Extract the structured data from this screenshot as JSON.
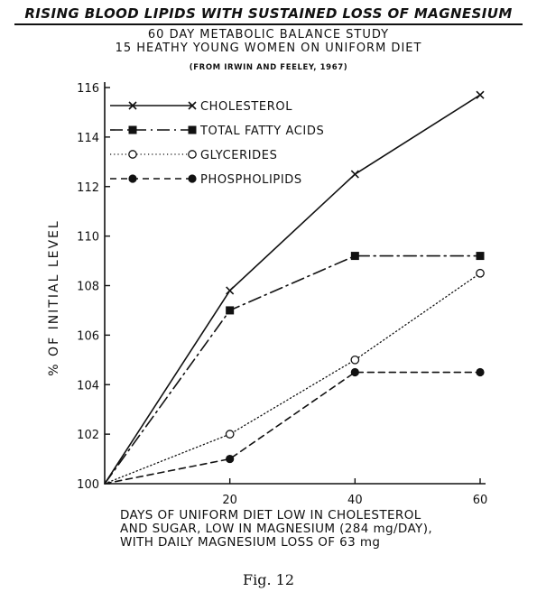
{
  "header": {
    "title": "RISING BLOOD LIPIDS WITH SUSTAINED LOSS OF MAGNESIUM",
    "subtitle1": "60 DAY METABOLIC BALANCE STUDY",
    "subtitle2": "15 HEATHY YOUNG WOMEN ON UNIFORM DIET",
    "source": "(FROM IRWIN AND FEELEY, 1967)"
  },
  "figure_caption": "Fig. 12",
  "chart_data": {
    "type": "line",
    "title": "RISING BLOOD LIPIDS WITH SUSTAINED LOSS OF MAGNESIUM",
    "ylabel": "% OF INITIAL LEVEL",
    "xlabel_lines": [
      "DAYS OF UNIFORM DIET LOW IN CHOLESTEROL",
      "AND SUGAR, LOW IN MAGNESIUM (284 mg/DAY),",
      "WITH DAILY MAGNESIUM LOSS OF 63 mg"
    ],
    "x": [
      0,
      20,
      40,
      60
    ],
    "x_ticks": [
      20,
      40,
      60
    ],
    "y_ticks": [
      100,
      102,
      104,
      106,
      108,
      110,
      112,
      114,
      116
    ],
    "xlim": [
      0,
      60
    ],
    "ylim": [
      100,
      116
    ],
    "grid": false,
    "legend_position": "top-left",
    "series": [
      {
        "name": "CHOLESTEROL",
        "marker": "x",
        "line": "solid",
        "values": [
          100,
          107.8,
          112.5,
          115.7
        ]
      },
      {
        "name": "TOTAL FATTY ACIDS",
        "marker": "filled-square",
        "line": "dash-dot",
        "values": [
          100,
          107.0,
          109.2,
          109.2
        ]
      },
      {
        "name": "GLYCERIDES",
        "marker": "open-circle",
        "line": "dotted",
        "values": [
          100,
          102.0,
          105.0,
          108.5
        ]
      },
      {
        "name": "PHOSPHOLIPIDS",
        "marker": "filled-circle",
        "line": "dashed",
        "values": [
          100,
          101.0,
          104.5,
          104.5
        ]
      }
    ]
  }
}
